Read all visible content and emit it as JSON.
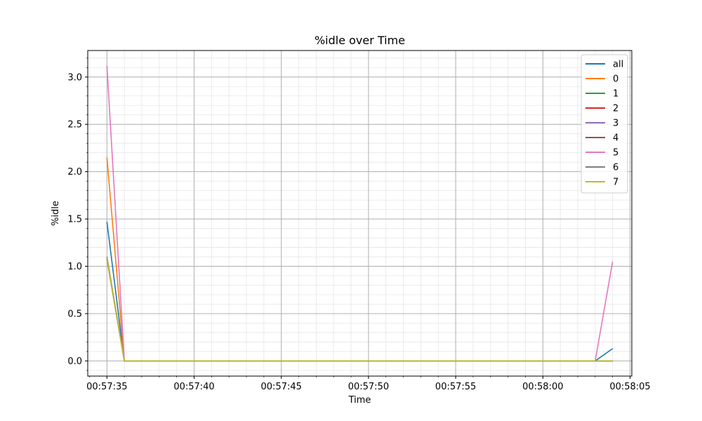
{
  "chart_data": {
    "type": "line",
    "title": "%idle over Time",
    "xlabel": "Time",
    "ylabel": "%idle",
    "x_tick_labels": [
      "00:57:35",
      "00:57:40",
      "00:57:45",
      "00:57:50",
      "00:57:55",
      "00:58:00",
      "00:58:05"
    ],
    "x": [
      "00:57:35",
      "00:57:36",
      "00:57:37",
      "00:57:38",
      "00:57:39",
      "00:57:40",
      "00:57:41",
      "00:57:42",
      "00:57:43",
      "00:57:44",
      "00:57:45",
      "00:57:46",
      "00:57:47",
      "00:57:48",
      "00:57:49",
      "00:57:50",
      "00:57:51",
      "00:57:52",
      "00:57:53",
      "00:57:54",
      "00:57:55",
      "00:57:56",
      "00:57:57",
      "00:57:58",
      "00:57:59",
      "00:58:00",
      "00:58:01",
      "00:58:02",
      "00:58:03",
      "00:58:04"
    ],
    "xlim": [
      "00:57:33.9",
      "00:58:05.1"
    ],
    "ylim": [
      -0.16,
      3.28
    ],
    "y_ticks": [
      0.0,
      0.5,
      1.0,
      1.5,
      2.0,
      2.5,
      3.0
    ],
    "y_tick_labels": [
      "0.0",
      "0.5",
      "1.0",
      "1.5",
      "2.0",
      "2.5",
      "3.0"
    ],
    "grid": "major and minor",
    "legend_position": "top-right",
    "series": [
      {
        "name": "all",
        "color": "#1f77b4",
        "values": [
          1.47,
          0,
          0,
          0,
          0,
          0,
          0,
          0,
          0,
          0,
          0,
          0,
          0,
          0,
          0,
          0,
          0,
          0,
          0,
          0,
          0,
          0,
          0,
          0,
          0,
          0,
          0,
          0,
          0,
          0.13
        ]
      },
      {
        "name": "0",
        "color": "#ff7f0e",
        "values": [
          2.15,
          0,
          0,
          0,
          0,
          0,
          0,
          0,
          0,
          0,
          0,
          0,
          0,
          0,
          0,
          0,
          0,
          0,
          0,
          0,
          0,
          0,
          0,
          0,
          0,
          0,
          0,
          0,
          0,
          0
        ]
      },
      {
        "name": "1",
        "color": "#2ca02c",
        "values": [
          1.08,
          0,
          0,
          0,
          0,
          0,
          0,
          0,
          0,
          0,
          0,
          0,
          0,
          0,
          0,
          0,
          0,
          0,
          0,
          0,
          0,
          0,
          0,
          0,
          0,
          0,
          0,
          0,
          0,
          0
        ]
      },
      {
        "name": "2",
        "color": "#d62728",
        "values": [
          1.1,
          0,
          0,
          0,
          0,
          0,
          0,
          0,
          0,
          0,
          0,
          0,
          0,
          0,
          0,
          0,
          0,
          0,
          0,
          0,
          0,
          0,
          0,
          0,
          0,
          0,
          0,
          0,
          0,
          0
        ]
      },
      {
        "name": "3",
        "color": "#9467bd",
        "values": [
          1.1,
          0,
          0,
          0,
          0,
          0,
          0,
          0,
          0,
          0,
          0,
          0,
          0,
          0,
          0,
          0,
          0,
          0,
          0,
          0,
          0,
          0,
          0,
          0,
          0,
          0,
          0,
          0,
          0,
          0
        ]
      },
      {
        "name": "4",
        "color": "#8c564b",
        "values": [
          1.08,
          0,
          0,
          0,
          0,
          0,
          0,
          0,
          0,
          0,
          0,
          0,
          0,
          0,
          0,
          0,
          0,
          0,
          0,
          0,
          0,
          0,
          0,
          0,
          0,
          0,
          0,
          0,
          0,
          0
        ]
      },
      {
        "name": "5",
        "color": "#e377c2",
        "values": [
          3.12,
          0,
          0,
          0,
          0,
          0,
          0,
          0,
          0,
          0,
          0,
          0,
          0,
          0,
          0,
          0,
          0,
          0,
          0,
          0,
          0,
          0,
          0,
          0,
          0,
          0,
          0,
          0,
          0,
          1.05
        ]
      },
      {
        "name": "6",
        "color": "#7f7f7f",
        "values": [
          1.08,
          0,
          0,
          0,
          0,
          0,
          0,
          0,
          0,
          0,
          0,
          0,
          0,
          0,
          0,
          0,
          0,
          0,
          0,
          0,
          0,
          0,
          0,
          0,
          0,
          0,
          0,
          0,
          0,
          0
        ]
      },
      {
        "name": "7",
        "color": "#bcbd22",
        "values": [
          1.09,
          0,
          0,
          0,
          0,
          0,
          0,
          0,
          0,
          0,
          0,
          0,
          0,
          0,
          0,
          0,
          0,
          0,
          0,
          0,
          0,
          0,
          0,
          0,
          0,
          0,
          0,
          0,
          0,
          0
        ]
      }
    ]
  }
}
